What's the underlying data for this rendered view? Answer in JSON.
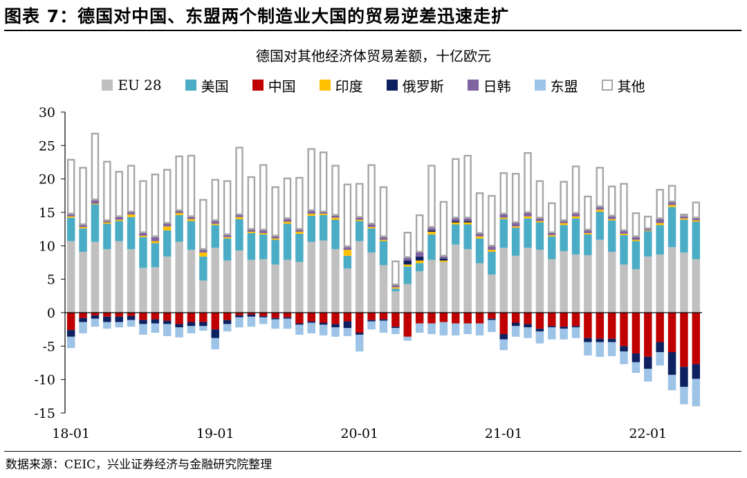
{
  "figure": {
    "title": "图表 7：德国对中国、东盟两个制造业大国的贸易逆差迅速走扩",
    "source": "数据来源：CEIC，兴业证券经济与金融研究院整理"
  },
  "chart_data": {
    "type": "bar",
    "stacked": true,
    "title": "德国对其他经济体贸易差额，十亿欧元",
    "xlabel": "",
    "ylabel": "",
    "ylim": [
      -15,
      30
    ],
    "yticks": [
      -15,
      -10,
      -5,
      0,
      5,
      10,
      15,
      20,
      25,
      30
    ],
    "xtick_labels": [
      "18-01",
      "19-01",
      "20-01",
      "21-01",
      "22-01"
    ],
    "xtick_positions": [
      0,
      12,
      24,
      36,
      48
    ],
    "legend_position": "top",
    "categories": [
      "2018-01",
      "2018-02",
      "2018-03",
      "2018-04",
      "2018-05",
      "2018-06",
      "2018-07",
      "2018-08",
      "2018-09",
      "2018-10",
      "2018-11",
      "2018-12",
      "2019-01",
      "2019-02",
      "2019-03",
      "2019-04",
      "2019-05",
      "2019-06",
      "2019-07",
      "2019-08",
      "2019-09",
      "2019-10",
      "2019-11",
      "2019-12",
      "2020-01",
      "2020-02",
      "2020-03",
      "2020-04",
      "2020-05",
      "2020-06",
      "2020-07",
      "2020-08",
      "2020-09",
      "2020-10",
      "2020-11",
      "2020-12",
      "2021-01",
      "2021-02",
      "2021-03",
      "2021-04",
      "2021-05",
      "2021-06",
      "2021-07",
      "2021-08",
      "2021-09",
      "2021-10",
      "2021-11",
      "2021-12",
      "2022-01",
      "2022-02",
      "2022-03",
      "2022-04",
      "2022-05"
    ],
    "series": [
      {
        "name": "EU 28",
        "color": "#c0c0c0",
        "border": "",
        "values": [
          10.7,
          9.1,
          10.6,
          9.5,
          10.7,
          9.5,
          6.7,
          6.8,
          8.4,
          10.6,
          9.4,
          4.8,
          9.7,
          7.8,
          9.3,
          7.9,
          8.0,
          7.2,
          7.9,
          7.6,
          10.6,
          10.8,
          9.5,
          6.6,
          10.7,
          9.0,
          7.1,
          3.2,
          4.3,
          6.2,
          7.9,
          7.6,
          10.2,
          9.5,
          7.4,
          5.7,
          9.7,
          8.5,
          9.7,
          9.4,
          8.0,
          9.2,
          8.7,
          8.6,
          10.9,
          9.1,
          7.2,
          6.5,
          8.4,
          8.7,
          9.8,
          9.0,
          8.0
        ]
      },
      {
        "name": "美国",
        "color": "#4bacc6",
        "border": "",
        "values": [
          3.5,
          3.5,
          5.6,
          3.8,
          3.0,
          4.8,
          4.6,
          3.6,
          3.9,
          4.0,
          4.3,
          3.6,
          3.4,
          3.3,
          4.7,
          4.0,
          3.7,
          3.7,
          5.4,
          4.2,
          3.9,
          3.8,
          4.4,
          1.9,
          3.0,
          3.6,
          3.6,
          0.4,
          2.6,
          1.2,
          3.8,
          0.0,
          3.0,
          3.7,
          3.7,
          3.4,
          4.3,
          4.2,
          4.4,
          4.1,
          3.4,
          3.9,
          5.4,
          3.1,
          4.2,
          4.7,
          4.4,
          4.2,
          3.8,
          4.4,
          6.0,
          4.9,
          5.6
        ]
      },
      {
        "name": "中国",
        "color": "#c00000",
        "border": "",
        "values": [
          -2.6,
          -0.8,
          -0.4,
          -0.6,
          -0.6,
          -0.5,
          -1.1,
          -1.0,
          -1.2,
          -1.7,
          -1.4,
          -1.4,
          -2.5,
          -1.1,
          -0.4,
          -0.3,
          -0.5,
          -0.8,
          -0.7,
          -1.6,
          -1.3,
          -1.5,
          -1.7,
          -1.3,
          -3.0,
          -1.1,
          -1.0,
          -2.1,
          -3.6,
          -1.6,
          -1.6,
          -1.4,
          -1.6,
          -1.6,
          -1.6,
          -0.9,
          -3.2,
          -1.5,
          -1.7,
          -2.4,
          -2.0,
          -2.1,
          -2.0,
          -3.8,
          -3.9,
          -3.9,
          -5.0,
          -6.1,
          -6.6,
          -4.4,
          -5.9,
          -8.1,
          -7.7
        ]
      },
      {
        "name": "印度",
        "color": "#ffc000",
        "border": "",
        "values": [
          0.2,
          0.2,
          0.1,
          0.2,
          0.2,
          0.4,
          0.2,
          0.3,
          0.6,
          0.3,
          0.3,
          0.6,
          0.2,
          0.2,
          0.3,
          0.2,
          0.2,
          0.2,
          0.3,
          0.3,
          0.3,
          0.2,
          0.3,
          0.9,
          0.2,
          0.2,
          0.2,
          0.2,
          0.3,
          0.4,
          0.4,
          0.2,
          0.3,
          0.3,
          0.3,
          0.3,
          0.2,
          0.2,
          0.3,
          0.2,
          0.2,
          0.3,
          0.3,
          0.2,
          0.3,
          0.2,
          0.2,
          0.2,
          0.1,
          0.3,
          0.3,
          0.2,
          0.2
        ]
      },
      {
        "name": "俄罗斯",
        "color": "#0d2060",
        "border": "",
        "values": [
          -1.0,
          -0.6,
          -0.5,
          -0.8,
          -0.8,
          -0.6,
          -0.6,
          -0.6,
          -0.5,
          -0.5,
          -0.6,
          -0.6,
          -1.3,
          -0.6,
          -0.3,
          -0.3,
          -0.2,
          -0.2,
          -0.2,
          -0.2,
          -0.2,
          -0.3,
          -0.5,
          -1.0,
          -0.3,
          -0.2,
          -0.2,
          -0.2,
          0.6,
          0.6,
          0.2,
          0.3,
          0.2,
          0.2,
          0.0,
          -0.2,
          -0.8,
          -0.5,
          -0.5,
          -0.4,
          -0.2,
          -0.3,
          -0.2,
          -0.6,
          -0.5,
          -0.5,
          -0.8,
          -1.3,
          -1.8,
          -1.5,
          -3.4,
          -3.0,
          -2.2
        ]
      },
      {
        "name": "日韩",
        "color": "#8064a2",
        "border": "",
        "values": [
          0.3,
          0.3,
          0.5,
          0.2,
          0.4,
          0.3,
          0.4,
          0.6,
          0.4,
          0.3,
          0.3,
          0.4,
          0.4,
          0.3,
          0.3,
          0.3,
          0.4,
          0.3,
          0.4,
          0.3,
          0.4,
          0.2,
          0.3,
          0.4,
          0.3,
          0.4,
          0.4,
          0.3,
          0.4,
          0.6,
          0.4,
          0.3,
          0.4,
          0.4,
          0.4,
          0.5,
          0.5,
          0.5,
          0.5,
          0.4,
          0.3,
          0.3,
          0.4,
          0.4,
          0.4,
          0.4,
          0.4,
          0.4,
          0.2,
          0.6,
          0.4,
          0.3,
          0.3
        ]
      },
      {
        "name": "东盟",
        "color": "#9dc3e6",
        "border": "",
        "values": [
          -1.7,
          -1.7,
          -1.2,
          -1.0,
          -0.8,
          -1.0,
          -1.6,
          -1.4,
          -1.8,
          -1.5,
          -1.1,
          -0.7,
          -1.7,
          -1.1,
          -1.5,
          -1.5,
          -1.0,
          -1.4,
          -1.5,
          -1.5,
          -1.6,
          -1.6,
          -1.4,
          -1.2,
          -2.5,
          -1.2,
          -1.8,
          -0.9,
          -0.6,
          -1.4,
          -1.6,
          -2.0,
          -1.8,
          -1.6,
          -1.8,
          -1.8,
          -1.6,
          -1.6,
          -1.6,
          -1.8,
          -1.8,
          -1.6,
          -1.6,
          -2.0,
          -2.2,
          -2.1,
          -1.9,
          -1.6,
          -1.9,
          -2.0,
          -2.3,
          -2.6,
          -4.1
        ]
      },
      {
        "name": "其他",
        "color": "#ffffff",
        "border": "#a6a6a6",
        "values": [
          8.3,
          8.7,
          10.1,
          9.0,
          6.9,
          7.1,
          7.9,
          9.5,
          8.2,
          8.3,
          9.3,
          7.6,
          6.3,
          8.2,
          10.2,
          8.0,
          9.9,
          7.5,
          6.2,
          7.9,
          9.4,
          9.1,
          7.6,
          9.5,
          5.2,
          9.0,
          7.6,
          3.7,
          3.9,
          5.7,
          9.4,
          8.3,
          9.0,
          9.5,
          6.2,
          7.7,
          6.3,
          7.5,
          9.1,
          5.7,
          4.6,
          6.0,
          7.2,
          5.2,
          6.0,
          4.6,
          7.2,
          3.7,
          2.0,
          4.5,
          2.6,
          0.4,
          2.5
        ]
      }
    ]
  }
}
